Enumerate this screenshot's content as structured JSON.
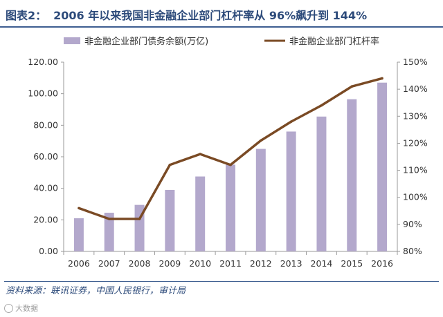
{
  "header": {
    "label": "图表2：",
    "title": "2006 年以来我国非金融企业部门杠杆率从 96%飙升到 144%"
  },
  "chart_data": {
    "type": "bar+line",
    "categories": [
      "2006",
      "2007",
      "2008",
      "2009",
      "2010",
      "2011",
      "2012",
      "2013",
      "2014",
      "2015",
      "2016"
    ],
    "series": [
      {
        "name": "非金融企业部门债务余额(万亿)",
        "kind": "bar",
        "axis": "left",
        "values": [
          21,
          24.5,
          29.5,
          39,
          47.5,
          55,
          65,
          76,
          85.5,
          96.5,
          107
        ]
      },
      {
        "name": "非金融企业部门杠杆率",
        "kind": "line",
        "axis": "right",
        "values": [
          96,
          92,
          92,
          112,
          116,
          112,
          121,
          128,
          134,
          141,
          144
        ]
      }
    ],
    "left_axis": {
      "min": 0,
      "max": 120,
      "step": 20,
      "tick_labels": [
        "0.00",
        "20.00",
        "40.00",
        "60.00",
        "80.00",
        "100.00",
        "120.00"
      ]
    },
    "right_axis": {
      "min": 80,
      "max": 150,
      "step": 10,
      "tick_labels": [
        "80%",
        "90%",
        "100%",
        "110%",
        "120%",
        "130%",
        "140%",
        "150%"
      ]
    },
    "legend_position": "top",
    "colors": {
      "bar": "#b3a8cc",
      "line": "#7a4a24",
      "title": "#2c4a7a"
    }
  },
  "footer": {
    "source": "资料来源：联讯证券，中国人民银行，审计局",
    "watermark": "大数据"
  }
}
